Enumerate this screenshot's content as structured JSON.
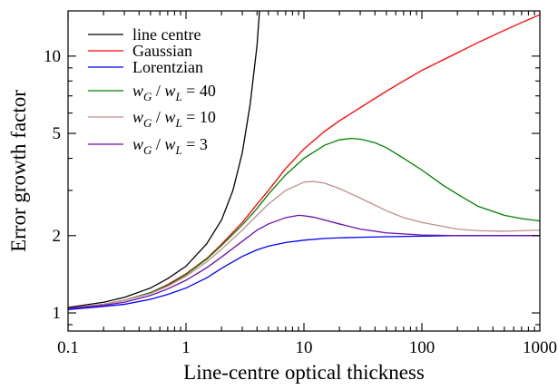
{
  "chart_data": {
    "type": "line",
    "xlabel": "Line-centre optical thickness",
    "ylabel": "Error growth factor",
    "xscale": "log",
    "yscale": "log",
    "xlim": [
      0.1,
      1000
    ],
    "ylim": [
      0.85,
      15
    ],
    "xticks": [
      0.1,
      1,
      10,
      100,
      1000
    ],
    "xtick_labels": [
      "0.1",
      "1",
      "10",
      "100",
      "1000"
    ],
    "yticks": [
      1,
      2,
      5,
      10
    ],
    "ytick_labels": [
      "1",
      "2",
      "5",
      "10"
    ],
    "grid": false,
    "legend_position": "top-left",
    "series": [
      {
        "name": "line centre",
        "color": "#000000",
        "x": [
          0.1,
          0.2,
          0.3,
          0.5,
          0.7,
          1,
          1.5,
          2,
          2.5,
          3,
          3.5,
          4,
          4.2
        ],
        "y": [
          1.05,
          1.1,
          1.15,
          1.25,
          1.36,
          1.52,
          1.86,
          2.3,
          3.0,
          4.2,
          6.5,
          11.0,
          15
        ]
      },
      {
        "name": "Gaussian",
        "color": "#ff0000",
        "x": [
          0.1,
          0.2,
          0.3,
          0.5,
          0.7,
          1,
          1.5,
          2,
          3,
          4,
          5,
          7,
          10,
          15,
          20,
          30,
          50,
          70,
          100,
          200,
          300,
          500,
          700,
          1000
        ],
        "y": [
          1.04,
          1.08,
          1.12,
          1.2,
          1.29,
          1.42,
          1.63,
          1.85,
          2.25,
          2.65,
          3.0,
          3.65,
          4.35,
          5.1,
          5.6,
          6.3,
          7.3,
          8.0,
          8.8,
          10.3,
          11.3,
          12.6,
          13.5,
          14.5
        ]
      },
      {
        "name": "Lorentzian",
        "color": "#0000ff",
        "x": [
          0.1,
          0.2,
          0.3,
          0.5,
          0.7,
          1,
          1.5,
          2,
          3,
          4,
          5,
          7,
          10,
          15,
          20,
          30,
          50,
          100,
          200,
          500,
          1000
        ],
        "y": [
          1.03,
          1.06,
          1.08,
          1.13,
          1.18,
          1.25,
          1.37,
          1.49,
          1.66,
          1.76,
          1.82,
          1.88,
          1.92,
          1.95,
          1.96,
          1.97,
          1.98,
          1.99,
          2.0,
          2.0,
          2.0
        ]
      },
      {
        "name": "w_G / w_L = 40",
        "color": "#008000",
        "x": [
          0.1,
          0.2,
          0.3,
          0.5,
          0.7,
          1,
          1.5,
          2,
          3,
          4,
          5,
          7,
          10,
          15,
          20,
          25,
          30,
          40,
          50,
          70,
          100,
          150,
          200,
          300,
          500,
          700,
          1000
        ],
        "y": [
          1.04,
          1.08,
          1.12,
          1.2,
          1.28,
          1.41,
          1.62,
          1.83,
          2.2,
          2.55,
          2.9,
          3.45,
          4.0,
          4.5,
          4.72,
          4.78,
          4.75,
          4.6,
          4.4,
          4.0,
          3.6,
          3.15,
          2.9,
          2.6,
          2.4,
          2.33,
          2.28
        ]
      },
      {
        "name": "w_G / w_L = 10",
        "color": "#bc8f8f",
        "x": [
          0.1,
          0.2,
          0.3,
          0.5,
          0.7,
          1,
          1.5,
          2,
          3,
          4,
          5,
          7,
          10,
          12,
          15,
          20,
          30,
          50,
          70,
          100,
          200,
          300,
          500,
          700,
          1000
        ],
        "y": [
          1.04,
          1.08,
          1.12,
          1.19,
          1.27,
          1.39,
          1.58,
          1.77,
          2.1,
          2.4,
          2.65,
          3.0,
          3.23,
          3.25,
          3.2,
          3.05,
          2.8,
          2.5,
          2.35,
          2.25,
          2.12,
          2.09,
          2.08,
          2.09,
          2.1
        ]
      },
      {
        "name": "w_G / w_L = 3",
        "color": "#6a0dad",
        "x": [
          0.1,
          0.2,
          0.3,
          0.5,
          0.7,
          1,
          1.5,
          2,
          3,
          4,
          5,
          7,
          9,
          10,
          12,
          15,
          20,
          30,
          50,
          100,
          200,
          500,
          1000
        ],
        "y": [
          1.04,
          1.07,
          1.1,
          1.17,
          1.24,
          1.34,
          1.5,
          1.65,
          1.9,
          2.1,
          2.22,
          2.35,
          2.4,
          2.39,
          2.36,
          2.3,
          2.22,
          2.12,
          2.05,
          2.01,
          2.0,
          2.0,
          2.0
        ]
      }
    ]
  },
  "legend": [
    {
      "type": "text",
      "text": "line centre"
    },
    {
      "type": "text",
      "text": "Gaussian"
    },
    {
      "type": "text",
      "text": "Lorentzian"
    },
    {
      "type": "ratio",
      "num_sub": "G",
      "den_sub": "L",
      "value": "40"
    },
    {
      "type": "ratio",
      "num_sub": "G",
      "den_sub": "L",
      "value": "10"
    },
    {
      "type": "ratio",
      "num_sub": "G",
      "den_sub": "L",
      "value": "3"
    }
  ]
}
